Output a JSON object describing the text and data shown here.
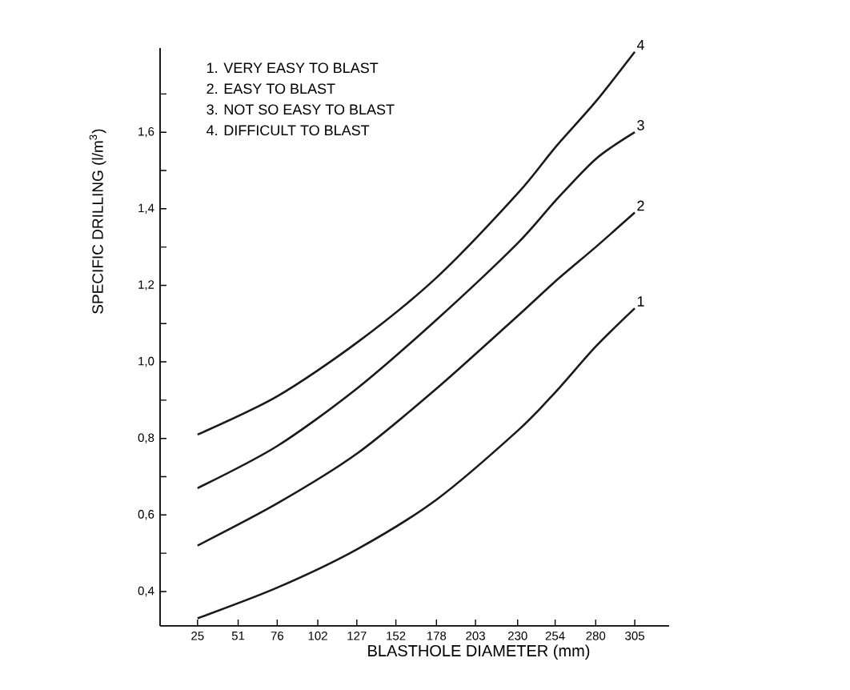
{
  "chart_data": {
    "type": "line",
    "xlabel": "BLASTHOLE DIAMETER (mm)",
    "ylabel": "SPECIFIC DRILLING (l/m$^{3}$)",
    "xlim": [
      1,
      327
    ],
    "ylim": [
      0.31,
      1.82
    ],
    "xticks": [
      25,
      51,
      76,
      102,
      127,
      152,
      178,
      203,
      230,
      254,
      280,
      305
    ],
    "yticks": [
      {
        "value": 0.4,
        "label": "0,4"
      },
      {
        "value": 0.5,
        "label": null
      },
      {
        "value": 0.6,
        "label": "0,6"
      },
      {
        "value": 0.7,
        "label": null
      },
      {
        "value": 0.8,
        "label": "0,8"
      },
      {
        "value": 0.9,
        "label": null
      },
      {
        "value": 1.0,
        "label": "1,0"
      },
      {
        "value": 1.1,
        "label": null
      },
      {
        "value": 1.2,
        "label": "1,2"
      },
      {
        "value": 1.3,
        "label": null
      },
      {
        "value": 1.4,
        "label": "1,4"
      },
      {
        "value": 1.5,
        "label": null
      },
      {
        "value": 1.6,
        "label": "1,6"
      },
      {
        "value": 1.7,
        "label": null
      }
    ],
    "marker": "none",
    "line_style": "solid",
    "x": [
      25,
      76,
      127,
      178,
      230,
      254,
      280,
      305
    ],
    "series": [
      {
        "name": "1",
        "color": "#1a1a1a",
        "values": [
          0.33,
          0.41,
          0.51,
          0.64,
          0.82,
          0.92,
          1.04,
          1.14
        ]
      },
      {
        "name": "2",
        "color": "#1a1a1a",
        "values": [
          0.52,
          0.63,
          0.76,
          0.93,
          1.12,
          1.21,
          1.3,
          1.39
        ]
      },
      {
        "name": "3",
        "color": "#1a1a1a",
        "values": [
          0.67,
          0.78,
          0.93,
          1.11,
          1.31,
          1.42,
          1.53,
          1.6
        ]
      },
      {
        "name": "4",
        "color": "#1a1a1a",
        "values": [
          0.81,
          0.91,
          1.05,
          1.22,
          1.44,
          1.56,
          1.68,
          1.81
        ]
      }
    ],
    "annotations": [
      "1.  VERY EASY TO BLAST",
      "2.  EASY TO BLAST",
      "3.  NOT SO EASY TO BLAST",
      "4.  DIFFICULT TO BLAST"
    ]
  }
}
